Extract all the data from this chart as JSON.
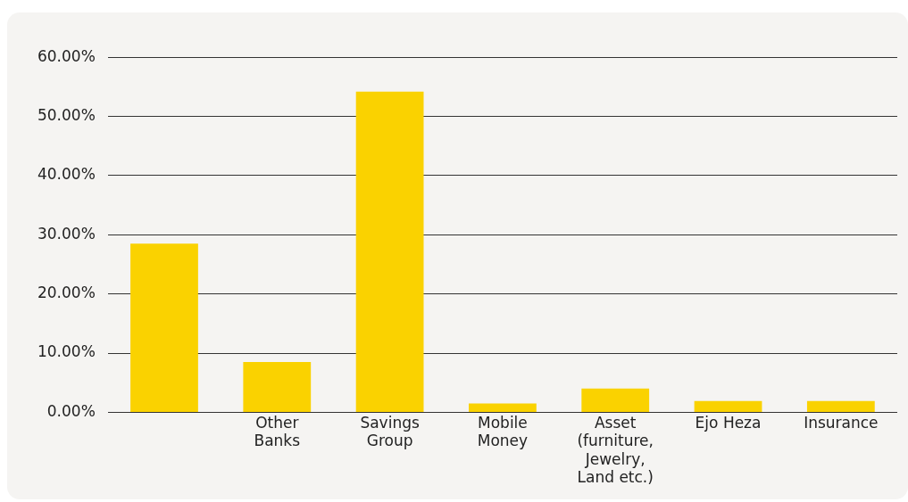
{
  "chart_data": {
    "type": "bar",
    "categories": [
      null,
      "Other Banks",
      "Savings Group",
      "Mobile Money",
      "Asset (furniture, Jewelry, Land etc.)",
      "Ejo Heza",
      "Insurance"
    ],
    "values": [
      28.5,
      8.5,
      54.2,
      1.5,
      4.0,
      1.9,
      1.9
    ],
    "color": "#fad200",
    "ylim": [
      0,
      60
    ],
    "yticks": [
      {
        "value": 0,
        "label": "0.00%"
      },
      {
        "value": 10,
        "label": "10.00%"
      },
      {
        "value": 20,
        "label": "20.00%"
      },
      {
        "value": 30,
        "label": "30.00%"
      },
      {
        "value": 40,
        "label": "40.00%"
      },
      {
        "value": 50,
        "label": "50.00%"
      },
      {
        "value": 60,
        "label": "60.00%"
      }
    ],
    "grid": "y",
    "legend": false
  }
}
